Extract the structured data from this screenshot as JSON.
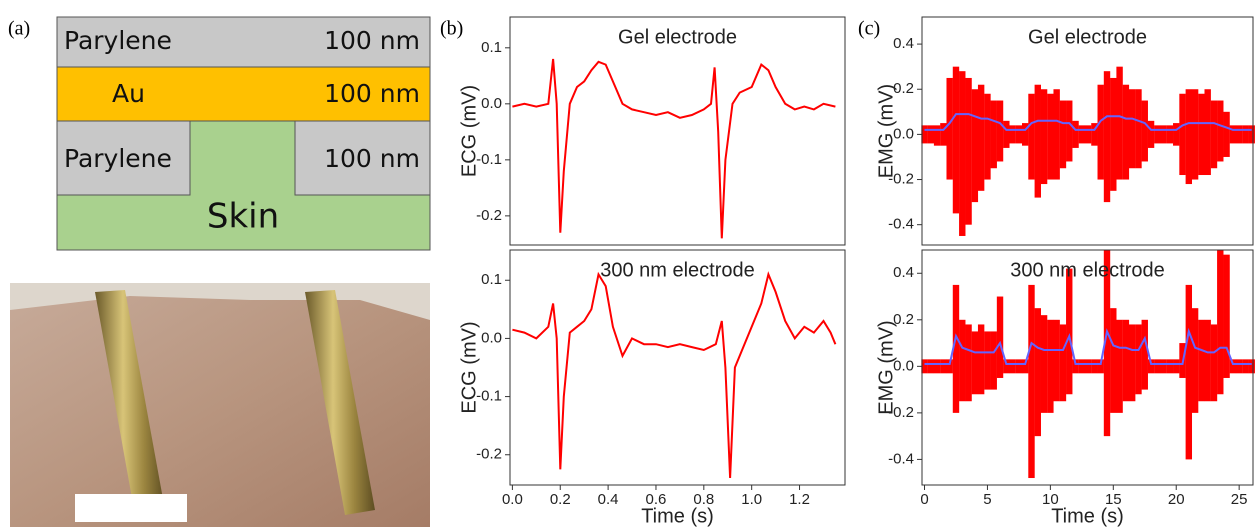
{
  "panel_labels": [
    "(a)",
    "(b)",
    "(c)"
  ],
  "layer_stack": {
    "layers": [
      {
        "name": "Parylene",
        "thickness": "100 nm"
      },
      {
        "name": "Au",
        "thickness": "100 nm"
      },
      {
        "name": "Parylene",
        "thickness": "100 nm"
      },
      {
        "name": "Skin"
      }
    ]
  },
  "chart_data": [
    {
      "type": "line",
      "title": "Gel electrode",
      "y_label": "ECG (mV)",
      "x": [
        0,
        0.05,
        0.1,
        0.15,
        0.17,
        0.185,
        0.2,
        0.215,
        0.24,
        0.27,
        0.3,
        0.33,
        0.36,
        0.39,
        0.42,
        0.46,
        0.5,
        0.55,
        0.6,
        0.65,
        0.7,
        0.75,
        0.8,
        0.83,
        0.845,
        0.86,
        0.875,
        0.89,
        0.92,
        0.95,
        1.0,
        1.04,
        1.07,
        1.1,
        1.14,
        1.18,
        1.22,
        1.26,
        1.3,
        1.35
      ],
      "series": [
        {
          "color": "#ff0000",
          "values": [
            -0.005,
            0,
            -0.005,
            0.0,
            0.08,
            0.0,
            -0.23,
            -0.12,
            0.0,
            0.03,
            0.04,
            0.06,
            0.075,
            0.07,
            0.04,
            0.0,
            -0.01,
            -0.015,
            -0.02,
            -0.015,
            -0.025,
            -0.02,
            -0.01,
            0.0,
            0.065,
            -0.05,
            -0.24,
            -0.1,
            0.0,
            0.02,
            0.03,
            0.07,
            0.06,
            0.03,
            0.0,
            -0.01,
            -0.005,
            -0.01,
            0.0,
            -0.005
          ]
        }
      ],
      "xlim": [
        -0.01,
        1.39
      ],
      "ylim": [
        -0.252,
        0.155
      ],
      "yticks": [
        0.1,
        {
          "value": 0,
          "label": "0.0"
        },
        -0.1,
        -0.2
      ]
    },
    {
      "type": "line",
      "title": "300 nm electrode",
      "y_label": "ECG (mV)",
      "x_label": "Time (s)",
      "x": [
        0,
        0.05,
        0.1,
        0.15,
        0.17,
        0.185,
        0.2,
        0.215,
        0.24,
        0.27,
        0.3,
        0.33,
        0.36,
        0.39,
        0.42,
        0.46,
        0.5,
        0.55,
        0.6,
        0.65,
        0.7,
        0.75,
        0.8,
        0.85,
        0.875,
        0.89,
        0.91,
        0.93,
        0.96,
        1.0,
        1.04,
        1.07,
        1.1,
        1.14,
        1.18,
        1.22,
        1.26,
        1.3,
        1.33,
        1.35
      ],
      "series": [
        {
          "color": "#ff0000",
          "values": [
            0.015,
            0.01,
            0.0,
            0.02,
            0.06,
            0.0,
            -0.225,
            -0.1,
            0.01,
            0.02,
            0.03,
            0.05,
            0.11,
            0.09,
            0.02,
            -0.03,
            0.0,
            -0.01,
            -0.01,
            -0.015,
            -0.01,
            -0.015,
            -0.02,
            -0.01,
            0.03,
            -0.05,
            -0.24,
            -0.05,
            -0.02,
            0.02,
            0.06,
            0.11,
            0.08,
            0.03,
            0.0,
            0.02,
            0.01,
            0.03,
            0.01,
            -0.01
          ]
        }
      ],
      "xlim": [
        -0.01,
        1.39
      ],
      "ylim": [
        -0.252,
        0.152
      ],
      "xticks": [
        {
          "value": 0,
          "label": "0.0"
        },
        0.2,
        0.4,
        0.6,
        0.8,
        {
          "value": 1,
          "label": "1.0"
        },
        1.2
      ],
      "yticks": [
        0.1,
        {
          "value": 0,
          "label": "0.0"
        },
        -0.1,
        -0.2
      ]
    },
    {
      "type": "band",
      "title": "Gel electrode",
      "y_label": "EMG (mV)",
      "x": [
        0,
        0.5,
        1,
        1.5,
        2,
        2.5,
        3,
        3.5,
        4,
        4.5,
        5,
        5.5,
        6,
        6.5,
        7,
        7.5,
        8,
        8.5,
        9,
        9.5,
        10,
        10.5,
        11,
        11.5,
        12,
        12.5,
        13,
        13.5,
        14,
        14.5,
        15,
        15.5,
        16,
        16.5,
        17,
        17.5,
        18,
        18.5,
        19,
        19.5,
        20,
        20.5,
        21,
        21.5,
        22,
        22.5,
        23,
        23.5,
        24,
        24.5,
        25,
        25.5,
        26
      ],
      "series": [
        {
          "color": "#ff0000",
          "upper": [
            0.04,
            0.04,
            0.04,
            0.05,
            0.25,
            0.3,
            0.28,
            0.25,
            0.2,
            0.22,
            0.18,
            0.15,
            0.15,
            0.06,
            0.04,
            0.04,
            0.05,
            0.18,
            0.22,
            0.2,
            0.18,
            0.2,
            0.15,
            0.15,
            0.06,
            0.04,
            0.04,
            0.05,
            0.22,
            0.28,
            0.25,
            0.3,
            0.22,
            0.2,
            0.2,
            0.15,
            0.06,
            0.04,
            0.04,
            0.04,
            0.05,
            0.18,
            0.2,
            0.2,
            0.18,
            0.2,
            0.15,
            0.15,
            0.1,
            0.04,
            0.04,
            0.04,
            0.04
          ],
          "lower": [
            -0.04,
            -0.04,
            -0.05,
            -0.05,
            -0.2,
            -0.35,
            -0.45,
            -0.4,
            -0.3,
            -0.25,
            -0.2,
            -0.15,
            -0.12,
            -0.06,
            -0.04,
            -0.04,
            -0.05,
            -0.2,
            -0.28,
            -0.22,
            -0.2,
            -0.2,
            -0.15,
            -0.12,
            -0.06,
            -0.04,
            -0.04,
            -0.05,
            -0.2,
            -0.3,
            -0.25,
            -0.2,
            -0.2,
            -0.15,
            -0.15,
            -0.12,
            -0.06,
            -0.04,
            -0.04,
            -0.04,
            -0.05,
            -0.18,
            -0.22,
            -0.2,
            -0.18,
            -0.18,
            -0.15,
            -0.12,
            -0.1,
            -0.04,
            -0.04,
            -0.04,
            -0.04
          ]
        },
        {
          "color": "#6464ff",
          "values": [
            0.02,
            0.02,
            0.02,
            0.02,
            0.05,
            0.09,
            0.09,
            0.09,
            0.08,
            0.07,
            0.07,
            0.06,
            0.05,
            0.02,
            0.02,
            0.02,
            0.02,
            0.05,
            0.06,
            0.06,
            0.06,
            0.06,
            0.05,
            0.05,
            0.02,
            0.02,
            0.02,
            0.02,
            0.06,
            0.08,
            0.08,
            0.08,
            0.07,
            0.07,
            0.06,
            0.05,
            0.02,
            0.02,
            0.02,
            0.02,
            0.02,
            0.04,
            0.05,
            0.05,
            0.05,
            0.05,
            0.05,
            0.04,
            0.03,
            0.02,
            0.02,
            0.02,
            0.02
          ]
        }
      ],
      "xlim": [
        -0.2,
        26.1
      ],
      "ylim": [
        -0.49,
        0.52
      ],
      "yticks": [
        0.4,
        0.2,
        {
          "value": 0,
          "label": "0.0"
        },
        -0.2,
        -0.4
      ]
    },
    {
      "type": "band",
      "title": "300 nm electrode",
      "y_label": "EMG (mV)",
      "x_label": "Time (s)",
      "x": [
        0,
        0.5,
        1,
        1.5,
        2,
        2.5,
        3,
        3.5,
        4,
        4.5,
        5,
        5.5,
        6,
        6.5,
        7,
        7.5,
        8,
        8.5,
        9,
        9.5,
        10,
        10.5,
        11,
        11.5,
        12,
        12.5,
        13,
        13.5,
        14,
        14.5,
        15,
        15.5,
        16,
        16.5,
        17,
        17.5,
        18,
        18.5,
        19,
        19.5,
        20,
        20.5,
        21,
        21.5,
        22,
        22.5,
        23,
        23.5,
        24,
        24.5,
        25,
        25.5,
        26
      ],
      "series": [
        {
          "color": "#ff0000",
          "upper": [
            0.03,
            0.03,
            0.03,
            0.03,
            0.03,
            0.35,
            0.2,
            0.18,
            0.15,
            0.18,
            0.15,
            0.15,
            0.3,
            0.03,
            0.03,
            0.03,
            0.03,
            0.35,
            0.25,
            0.22,
            0.2,
            0.2,
            0.18,
            0.42,
            0.03,
            0.03,
            0.03,
            0.03,
            0.03,
            0.5,
            0.25,
            0.2,
            0.2,
            0.18,
            0.18,
            0.2,
            0.03,
            0.03,
            0.03,
            0.03,
            0.03,
            0.1,
            0.35,
            0.25,
            0.2,
            0.2,
            0.18,
            0.5,
            0.48,
            0.03,
            0.03,
            0.03,
            0.03
          ],
          "lower": [
            -0.03,
            -0.03,
            -0.03,
            -0.03,
            -0.03,
            -0.2,
            -0.15,
            -0.15,
            -0.12,
            -0.12,
            -0.1,
            -0.1,
            -0.05,
            -0.03,
            -0.03,
            -0.03,
            -0.03,
            -0.48,
            -0.3,
            -0.2,
            -0.2,
            -0.15,
            -0.15,
            -0.12,
            -0.03,
            -0.03,
            -0.03,
            -0.03,
            -0.03,
            -0.3,
            -0.2,
            -0.2,
            -0.15,
            -0.15,
            -0.12,
            -0.1,
            -0.03,
            -0.03,
            -0.03,
            -0.03,
            -0.03,
            -0.05,
            -0.4,
            -0.2,
            -0.15,
            -0.15,
            -0.15,
            -0.12,
            -0.05,
            -0.03,
            -0.03,
            -0.03,
            -0.03
          ]
        },
        {
          "color": "#6464ff",
          "values": [
            0.01,
            0.01,
            0.01,
            0.01,
            0.01,
            0.13,
            0.08,
            0.07,
            0.06,
            0.06,
            0.06,
            0.06,
            0.1,
            0.01,
            0.01,
            0.01,
            0.01,
            0.1,
            0.08,
            0.07,
            0.07,
            0.07,
            0.07,
            0.13,
            0.01,
            0.01,
            0.01,
            0.01,
            0.01,
            0.15,
            0.09,
            0.08,
            0.08,
            0.07,
            0.07,
            0.12,
            0.01,
            0.01,
            0.01,
            0.01,
            0.01,
            0.01,
            0.15,
            0.08,
            0.07,
            0.06,
            0.06,
            0.08,
            0.08,
            0.01,
            0.01,
            0.01,
            0.01
          ]
        }
      ],
      "xlim": [
        -0.2,
        26.1
      ],
      "ylim": [
        -0.51,
        0.5
      ],
      "xticks": [
        0,
        5,
        10,
        15,
        20,
        25
      ],
      "yticks": [
        0.4,
        0.2,
        {
          "value": 0,
          "label": "0.0"
        },
        -0.2,
        -0.4
      ]
    }
  ]
}
